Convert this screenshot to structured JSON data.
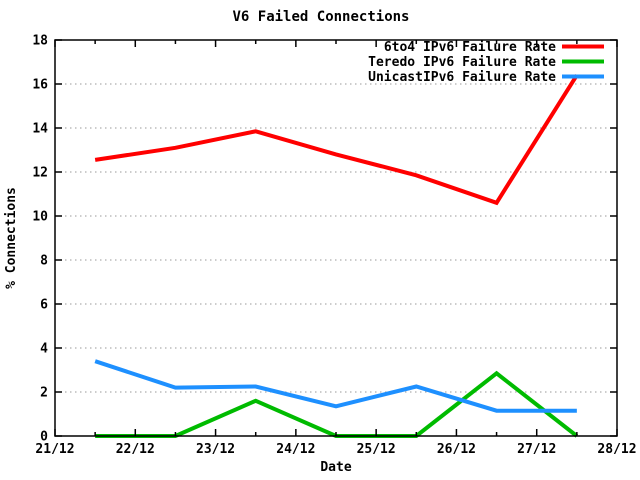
{
  "chart_data": {
    "type": "line",
    "title": "V6 Failed Connections",
    "xlabel": "Date",
    "ylabel": "% Connections",
    "x_tick_labels": [
      "21/12",
      "22/12",
      "23/12",
      "24/12",
      "25/12",
      "26/12",
      "27/12",
      "28/12"
    ],
    "y_tick_values": [
      0,
      2,
      4,
      6,
      8,
      10,
      12,
      14,
      16,
      18
    ],
    "ylim": [
      0,
      18
    ],
    "xlim_days": [
      0,
      7
    ],
    "x_days": [
      0.5,
      1.5,
      2.5,
      3.5,
      4.5,
      5.5,
      6.5
    ],
    "series": [
      {
        "name": "6to4 IPv6 Failure Rate",
        "color": "#ff0000",
        "values": [
          12.55,
          13.1,
          13.85,
          12.8,
          11.85,
          10.6,
          16.4
        ]
      },
      {
        "name": "Teredo IPv6 Failure Rate",
        "color": "#00bb00",
        "values": [
          0,
          0,
          1.6,
          0,
          0,
          2.85,
          0
        ]
      },
      {
        "name": "UnicastIPv6 Failure Rate",
        "color": "#1e90ff",
        "values": [
          3.4,
          2.2,
          2.25,
          1.35,
          2.25,
          1.15,
          1.15
        ]
      }
    ],
    "legend_position": "top-right-inside",
    "grid": "horizontal-dotted",
    "colors": {
      "grid": "#9a9a9a",
      "axis": "#000000",
      "background": "#ffffff"
    }
  }
}
